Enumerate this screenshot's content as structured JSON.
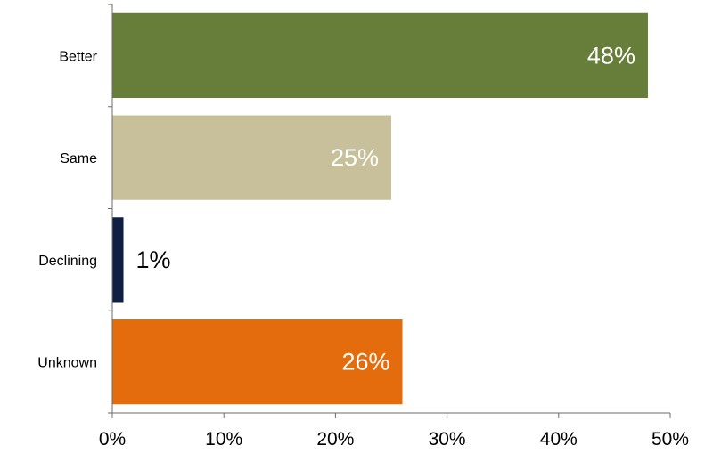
{
  "chart_data": {
    "type": "bar",
    "orientation": "horizontal",
    "categories": [
      "Better",
      "Same",
      "Declining",
      "Unknown"
    ],
    "values": [
      48,
      25,
      1,
      26
    ],
    "value_labels": [
      "48%",
      "25%",
      "1%",
      "26%"
    ],
    "colors": [
      "#667e39",
      "#c8c09a",
      "#0f1f44",
      "#e46c0c"
    ],
    "label_colors": [
      "#ffffff",
      "#ffffff",
      "#000000",
      "#ffffff"
    ],
    "label_position": [
      "inside-end",
      "inside-end",
      "outside-end",
      "inside-end"
    ],
    "xlim": [
      0,
      50
    ],
    "xticks": [
      0,
      10,
      20,
      30,
      40,
      50
    ],
    "xtick_labels": [
      "0%",
      "10%",
      "20%",
      "30%",
      "40%",
      "50%"
    ],
    "title": "",
    "xlabel": "",
    "ylabel": "",
    "grid": false,
    "legend": "none"
  }
}
